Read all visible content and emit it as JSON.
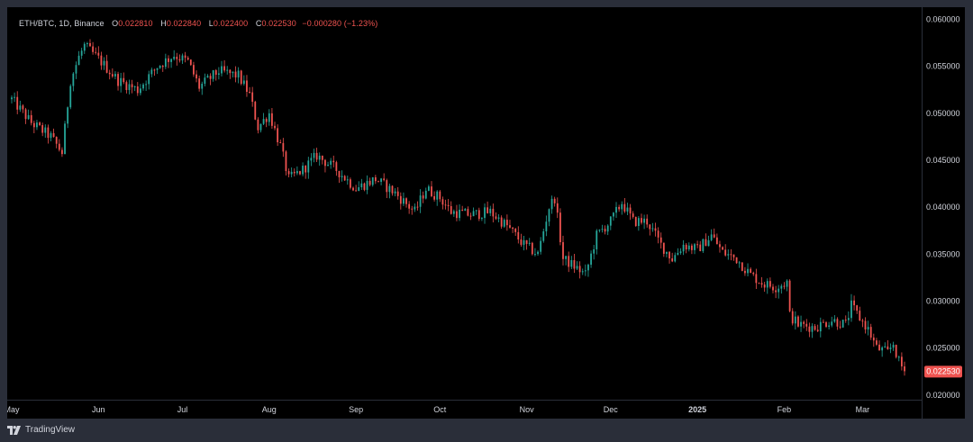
{
  "legend": {
    "symbol": "ETH/BTC",
    "interval": "1D",
    "exchange": "Binance",
    "open_label": "O",
    "open": "0.022810",
    "high_label": "H",
    "high": "0.022840",
    "low_label": "L",
    "low": "0.022400",
    "close_label": "C",
    "close": "0.022530",
    "change": "−0.000280 (−1.23%)"
  },
  "brand": {
    "name": "TradingView"
  },
  "colors": {
    "up": "#26a69a",
    "down": "#ef5350",
    "background": "#000000",
    "frame": "#2a2e39",
    "axis_text": "#d1d4dc"
  },
  "chart_data": {
    "type": "candlestick",
    "title": "",
    "xlabel": "",
    "ylabel": "",
    "ylim": [
      0.0195,
      0.0613
    ],
    "y_ticks": [
      "0.060000",
      "0.055000",
      "0.050000",
      "0.045000",
      "0.040000",
      "0.035000",
      "0.030000",
      "0.025000",
      "0.020000"
    ],
    "x_ticks": [
      {
        "label": "May",
        "date": "2024-05-01"
      },
      {
        "label": "Jun",
        "date": "2024-06-01"
      },
      {
        "label": "Jul",
        "date": "2024-07-01"
      },
      {
        "label": "Aug",
        "date": "2024-08-01"
      },
      {
        "label": "Sep",
        "date": "2024-09-01"
      },
      {
        "label": "Oct",
        "date": "2024-10-01"
      },
      {
        "label": "Nov",
        "date": "2024-11-01"
      },
      {
        "label": "Dec",
        "date": "2024-12-01"
      },
      {
        "label": "2025",
        "date": "2025-01-01",
        "bold": true
      },
      {
        "label": "Feb",
        "date": "2025-02-01"
      },
      {
        "label": "Mar",
        "date": "2025-03-01"
      }
    ],
    "last_price": "0.022530",
    "series": [
      {
        "name": "ETH/BTC",
        "approx_daily_closes": [
          [
            "2024-05-01",
            0.0515
          ],
          [
            "2024-05-08",
            0.049
          ],
          [
            "2024-05-15",
            0.0475
          ],
          [
            "2024-05-19",
            0.0458
          ],
          [
            "2024-05-22",
            0.0535
          ],
          [
            "2024-05-25",
            0.056
          ],
          [
            "2024-05-27",
            0.0572
          ],
          [
            "2024-06-01",
            0.0558
          ],
          [
            "2024-06-08",
            0.0535
          ],
          [
            "2024-06-15",
            0.0525
          ],
          [
            "2024-06-22",
            0.055
          ],
          [
            "2024-06-28",
            0.0562
          ],
          [
            "2024-07-03",
            0.0555
          ],
          [
            "2024-07-07",
            0.0528
          ],
          [
            "2024-07-14",
            0.0545
          ],
          [
            "2024-07-21",
            0.054
          ],
          [
            "2024-07-25",
            0.052
          ],
          [
            "2024-07-28",
            0.0485
          ],
          [
            "2024-08-01",
            0.05
          ],
          [
            "2024-08-05",
            0.0465
          ],
          [
            "2024-08-08",
            0.043
          ],
          [
            "2024-08-13",
            0.044
          ],
          [
            "2024-08-18",
            0.0455
          ],
          [
            "2024-08-25",
            0.044
          ],
          [
            "2024-09-01",
            0.042
          ],
          [
            "2024-09-08",
            0.043
          ],
          [
            "2024-09-15",
            0.0415
          ],
          [
            "2024-09-22",
            0.0395
          ],
          [
            "2024-09-26",
            0.042
          ],
          [
            "2024-10-01",
            0.041
          ],
          [
            "2024-10-05",
            0.0395
          ],
          [
            "2024-10-12",
            0.0392
          ],
          [
            "2024-10-19",
            0.0395
          ],
          [
            "2024-10-25",
            0.038
          ],
          [
            "2024-10-31",
            0.036
          ],
          [
            "2024-11-05",
            0.035
          ],
          [
            "2024-11-09",
            0.04
          ],
          [
            "2024-11-11",
            0.041
          ],
          [
            "2024-11-14",
            0.0345
          ],
          [
            "2024-11-19",
            0.0335
          ],
          [
            "2024-11-22",
            0.0328
          ],
          [
            "2024-11-26",
            0.037
          ],
          [
            "2024-12-01",
            0.0385
          ],
          [
            "2024-12-05",
            0.0405
          ],
          [
            "2024-12-09",
            0.0385
          ],
          [
            "2024-12-14",
            0.0385
          ],
          [
            "2024-12-19",
            0.036
          ],
          [
            "2024-12-23",
            0.0345
          ],
          [
            "2024-12-27",
            0.036
          ],
          [
            "2025-01-01",
            0.0355
          ],
          [
            "2025-01-06",
            0.037
          ],
          [
            "2025-01-10",
            0.0352
          ],
          [
            "2025-01-15",
            0.0345
          ],
          [
            "2025-01-20",
            0.0328
          ],
          [
            "2025-01-25",
            0.0318
          ],
          [
            "2025-01-29",
            0.0315
          ],
          [
            "2025-02-02",
            0.032
          ],
          [
            "2025-02-03",
            0.0285
          ],
          [
            "2025-02-06",
            0.0275
          ],
          [
            "2025-02-12",
            0.0272
          ],
          [
            "2025-02-18",
            0.028
          ],
          [
            "2025-02-23",
            0.0275
          ],
          [
            "2025-02-25",
            0.0295
          ],
          [
            "2025-02-28",
            0.0282
          ],
          [
            "2025-03-03",
            0.027
          ],
          [
            "2025-03-06",
            0.025
          ],
          [
            "2025-03-10",
            0.0245
          ],
          [
            "2025-03-12",
            0.0255
          ],
          [
            "2025-03-14",
            0.0235
          ],
          [
            "2025-03-16",
            0.02253
          ]
        ]
      }
    ]
  }
}
